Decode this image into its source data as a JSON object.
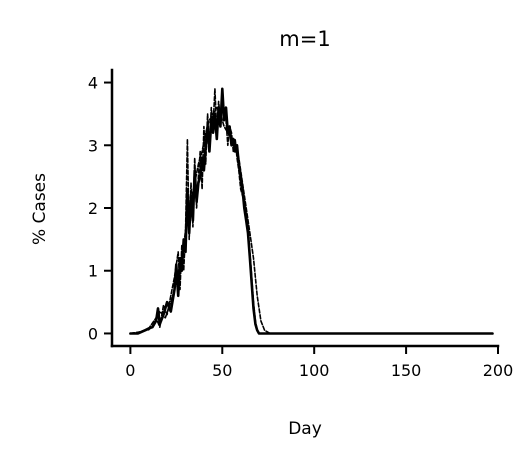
{
  "chart_data": {
    "type": "line",
    "title": "m=1",
    "xlabel": "Day",
    "ylabel": "% Cases",
    "xlim": [
      -10,
      200
    ],
    "ylim": [
      -0.2,
      4.2
    ],
    "xticks": [
      0,
      50,
      100,
      150,
      200
    ],
    "yticks": [
      0,
      1,
      2,
      3,
      4
    ],
    "grid": false,
    "legend": "none",
    "series": [
      {
        "style": "solid",
        "x": [
          0,
          4,
          8,
          10,
          12,
          14,
          15,
          16,
          18,
          20,
          22,
          24,
          25,
          26,
          27,
          28,
          29,
          30,
          31,
          32,
          33,
          34,
          35,
          36,
          37,
          38,
          39,
          40,
          41,
          42,
          43,
          44,
          45,
          46,
          47,
          48,
          49,
          50,
          51,
          52,
          53,
          54,
          55,
          56,
          57,
          58,
          59,
          60,
          61,
          62,
          63,
          64,
          65,
          66,
          67,
          68,
          69,
          70,
          72,
          75,
          80,
          100,
          120,
          150,
          180,
          197
        ],
        "y": [
          0,
          0,
          0.05,
          0.08,
          0.1,
          0.2,
          0.4,
          0.15,
          0.3,
          0.5,
          0.35,
          0.7,
          1.1,
          0.6,
          1.2,
          1.0,
          1.5,
          1.3,
          2.3,
          1.6,
          2.2,
          1.8,
          2.6,
          2.1,
          2.4,
          2.5,
          2.8,
          2.6,
          3.0,
          3.3,
          2.9,
          3.4,
          3.2,
          3.5,
          3.1,
          3.6,
          3.3,
          3.9,
          3.4,
          3.6,
          3.2,
          3.3,
          3.0,
          3.1,
          2.9,
          3.0,
          2.7,
          2.5,
          2.3,
          2.0,
          1.8,
          1.6,
          1.2,
          0.8,
          0.4,
          0.15,
          0.05,
          0,
          0,
          0,
          0,
          0,
          0,
          0,
          0,
          0
        ]
      },
      {
        "style": "dashed",
        "x": [
          0,
          5,
          10,
          14,
          16,
          18,
          20,
          22,
          24,
          26,
          27,
          28,
          29,
          30,
          31,
          32,
          33,
          34,
          35,
          36,
          37,
          38,
          39,
          40,
          41,
          42,
          43,
          44,
          45,
          46,
          47,
          48,
          49,
          50,
          51,
          52,
          53,
          54,
          55,
          56,
          57,
          58,
          59,
          60,
          61,
          62,
          63,
          64,
          65,
          66,
          67,
          68,
          69,
          70,
          72,
          75,
          80,
          100,
          150,
          197
        ],
        "y": [
          0,
          0.02,
          0.08,
          0.25,
          0.1,
          0.45,
          0.3,
          0.6,
          0.9,
          1.3,
          0.7,
          1.4,
          1.0,
          1.6,
          3.1,
          1.5,
          2.4,
          1.7,
          2.8,
          2.0,
          2.5,
          2.9,
          2.3,
          3.3,
          2.7,
          3.5,
          3.0,
          3.6,
          3.3,
          3.9,
          3.2,
          3.7,
          3.4,
          3.8,
          3.5,
          3.4,
          3.0,
          3.3,
          3.2,
          2.9,
          3.1,
          2.8,
          2.6,
          2.3,
          2.2,
          2.1,
          1.9,
          1.7,
          1.3,
          0.9,
          0.5,
          0.2,
          0.05,
          0,
          0,
          0,
          0,
          0,
          0,
          0
        ]
      },
      {
        "style": "dashed",
        "x": [
          0,
          6,
          10,
          13,
          16,
          19,
          22,
          25,
          27,
          29,
          31,
          33,
          35,
          37,
          39,
          41,
          43,
          45,
          47,
          49,
          51,
          53,
          55,
          57,
          59,
          61,
          63,
          65,
          67,
          69,
          71,
          73,
          76,
          80,
          120,
          197
        ],
        "y": [
          0,
          0.03,
          0.06,
          0.15,
          0.35,
          0.25,
          0.5,
          0.8,
          1.1,
          1.4,
          1.9,
          2.1,
          2.4,
          2.7,
          2.9,
          3.2,
          3.4,
          3.5,
          3.6,
          3.5,
          3.3,
          3.2,
          3.1,
          3.0,
          2.8,
          2.4,
          2.0,
          1.6,
          1.2,
          0.6,
          0.2,
          0.05,
          0,
          0,
          0,
          0
        ]
      }
    ]
  }
}
